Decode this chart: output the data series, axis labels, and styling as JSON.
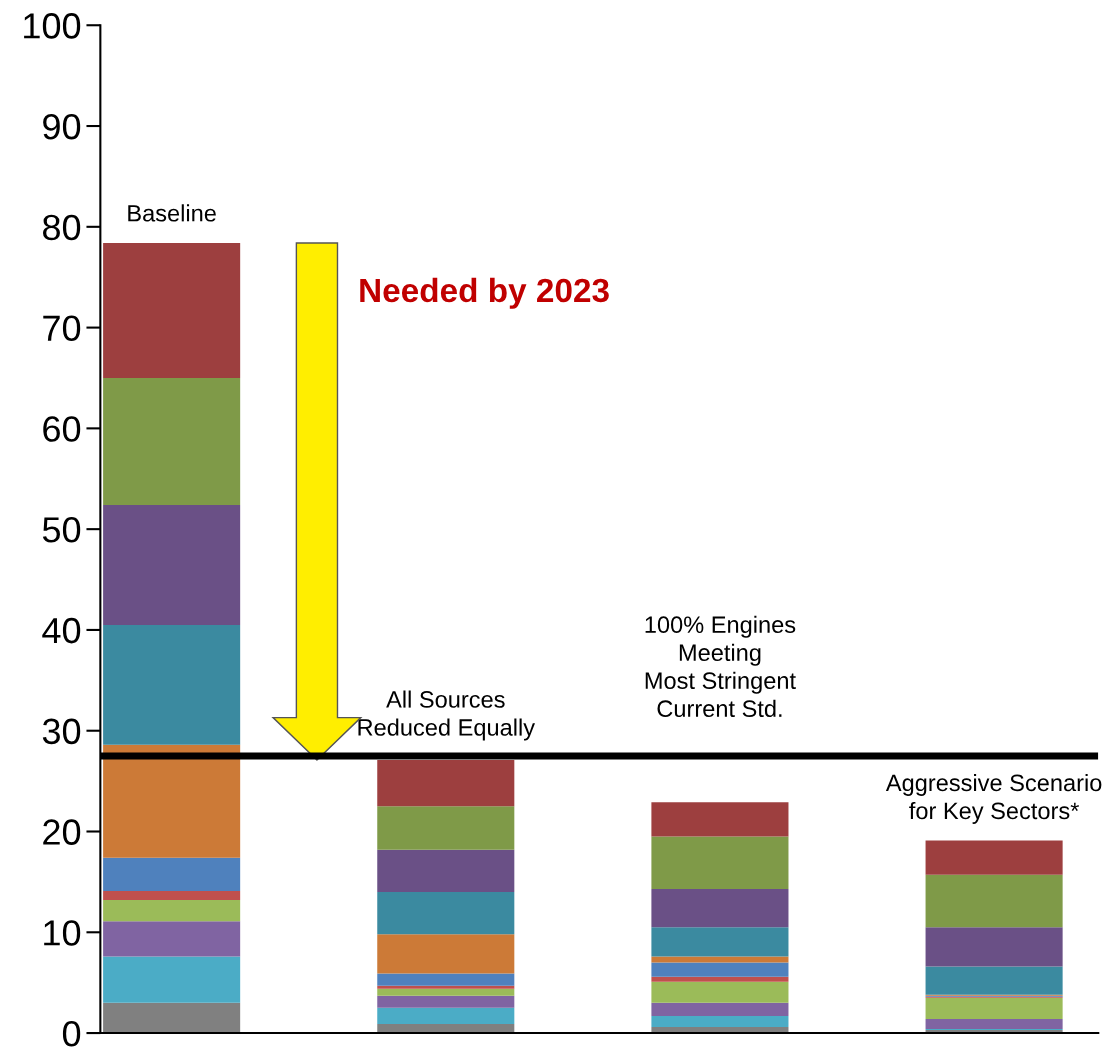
{
  "chart_data": {
    "type": "bar",
    "stacked": true,
    "categories": [
      "Baseline",
      "All Sources\nReduced Equally",
      "100% Engines\nMeeting\nMost Stringent\nCurrent Std.",
      "Aggressive Scenario\nfor Key Sectors*"
    ],
    "series": [
      {
        "color": "#808080",
        "values": [
          3.0,
          0.9,
          0.6,
          0.3
        ]
      },
      {
        "color": "#4bacc6",
        "values": [
          4.6,
          1.6,
          1.1,
          0.1
        ]
      },
      {
        "color": "#8064a2",
        "values": [
          3.5,
          1.2,
          1.3,
          1.0
        ]
      },
      {
        "color": "#9bbb59",
        "values": [
          2.1,
          0.7,
          2.1,
          2.1
        ]
      },
      {
        "color": "#c0504d",
        "values": [
          0.9,
          0.3,
          0.5,
          0.1
        ]
      },
      {
        "color": "#4f81bd",
        "values": [
          3.3,
          1.2,
          1.4,
          0.1
        ]
      },
      {
        "color": "#cc7a37",
        "values": [
          11.2,
          3.9,
          0.6,
          0.1
        ]
      },
      {
        "color": "#3b8aa0",
        "values": [
          11.9,
          4.2,
          2.9,
          2.8
        ]
      },
      {
        "color": "#6a5086",
        "values": [
          11.9,
          4.2,
          3.8,
          3.9
        ]
      },
      {
        "color": "#7f9a48",
        "values": [
          12.6,
          4.3,
          5.2,
          5.2
        ]
      },
      {
        "color": "#9d3f3f",
        "values": [
          13.4,
          4.6,
          3.4,
          3.4
        ]
      }
    ],
    "ylim": [
      0,
      100
    ],
    "yticks": [
      0,
      10,
      20,
      30,
      40,
      50,
      60,
      70,
      80,
      90,
      100
    ],
    "ref_lines": [
      {
        "axis": "y",
        "value": 27.5,
        "color": "#000000"
      }
    ],
    "annotations": [
      "Needed by 2023"
    ],
    "grid": false
  }
}
